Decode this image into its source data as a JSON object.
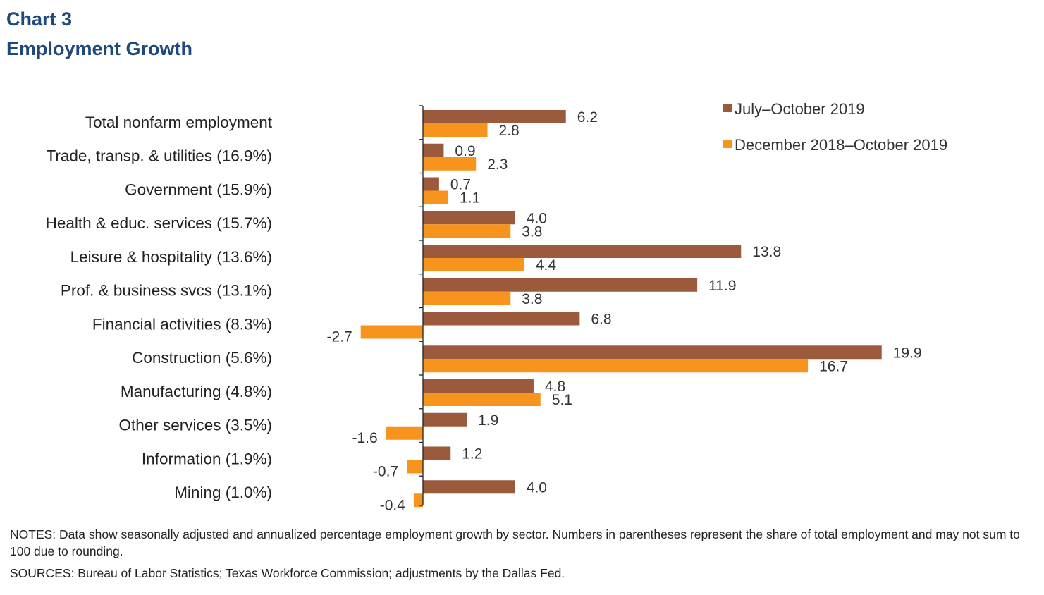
{
  "header": {
    "chart_number": "Chart 3",
    "title": "Employment Growth"
  },
  "chart_data": {
    "type": "bar",
    "orientation": "horizontal",
    "categories": [
      "Total nonfarm employment",
      "Trade, transp. & utilities (16.9%)",
      "Government (15.9%)",
      "Health & educ. services (15.7%)",
      "Leisure & hospitality (13.6%)",
      "Prof. & business svcs (13.1%)",
      "Financial activities (8.3%)",
      "Construction (5.6%)",
      "Manufacturing (4.8%)",
      "Other services (3.5%)",
      "Information (1.9%)",
      "Mining (1.0%)"
    ],
    "series": [
      {
        "name": "July–October 2019",
        "color": "#9c5a3c",
        "values": [
          6.2,
          0.9,
          0.7,
          4.0,
          13.8,
          11.9,
          6.8,
          19.9,
          4.8,
          1.9,
          1.2,
          4.0
        ],
        "labels": [
          "6.2",
          "0.9",
          "0.7",
          "4.0",
          "13.8",
          "11.9",
          "6.8",
          "19.9",
          "4.8",
          "1.9",
          "1.2",
          "4.0"
        ]
      },
      {
        "name": "December 2018–October 2019",
        "color": "#f7941d",
        "values": [
          2.8,
          2.3,
          1.1,
          3.8,
          4.4,
          3.8,
          -2.7,
          16.7,
          5.1,
          -1.6,
          -0.7,
          -0.4
        ],
        "labels": [
          "2.8",
          "2.3",
          "1.1",
          "3.8",
          "4.4",
          "3.8",
          "-2.7",
          "16.7",
          "5.1",
          "-1.6",
          "-0.7",
          "-0.4"
        ]
      }
    ],
    "xlim": [
      -5,
      22
    ],
    "grid": false,
    "legend_position": "top-right"
  },
  "notes": "NOTES: Data show seasonally adjusted and annualized percentage employment growth by sector. Numbers in parentheses represent the share of total employment and may not sum to 100 due to rounding.",
  "sources": "SOURCES: Bureau of Labor Statistics; Texas Workforce Commission; adjustments by the Dallas Fed."
}
